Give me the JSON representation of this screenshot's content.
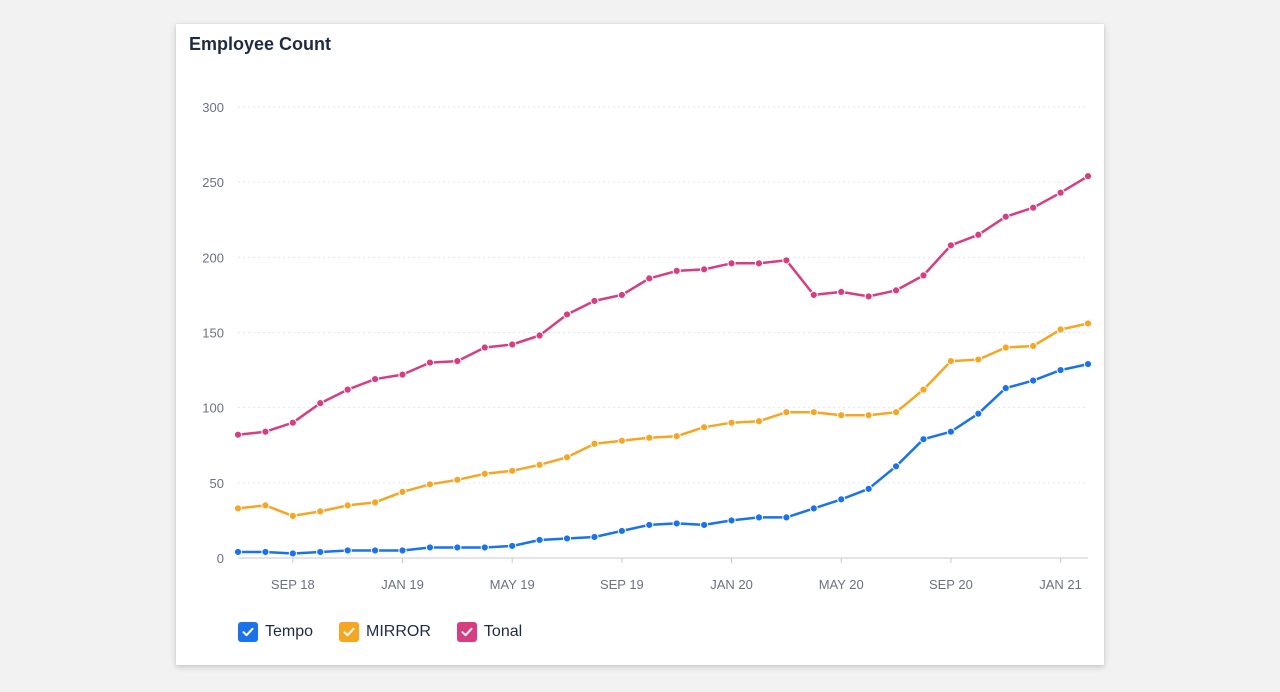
{
  "card": {
    "title": "Employee Count"
  },
  "chart_data": {
    "type": "line",
    "title": "Employee Count",
    "xlabel": "",
    "ylabel": "",
    "ylim": [
      0,
      300
    ],
    "yticks": [
      0,
      50,
      100,
      150,
      200,
      250,
      300
    ],
    "grid": "horizontal dotted",
    "legend_position": "bottom-left",
    "x": [
      "2018-07",
      "2018-08",
      "2018-09",
      "2018-10",
      "2018-11",
      "2018-12",
      "2019-01",
      "2019-02",
      "2019-03",
      "2019-04",
      "2019-05",
      "2019-06",
      "2019-07",
      "2019-08",
      "2019-09",
      "2019-10",
      "2019-11",
      "2019-12",
      "2020-01",
      "2020-02",
      "2020-03",
      "2020-04",
      "2020-05",
      "2020-06",
      "2020-07",
      "2020-08",
      "2020-09",
      "2020-10",
      "2020-11",
      "2020-12",
      "2021-01",
      "2021-02"
    ],
    "x_ticks": [
      {
        "x": "2018-09",
        "label": "SEP 18"
      },
      {
        "x": "2019-01",
        "label": "JAN 19"
      },
      {
        "x": "2019-05",
        "label": "MAY 19"
      },
      {
        "x": "2019-09",
        "label": "SEP 19"
      },
      {
        "x": "2020-01",
        "label": "JAN 20"
      },
      {
        "x": "2020-05",
        "label": "MAY 20"
      },
      {
        "x": "2020-09",
        "label": "SEP 20"
      },
      {
        "x": "2021-01",
        "label": "JAN 21"
      }
    ],
    "series": [
      {
        "name": "Tempo",
        "color": "#1a73e8",
        "values": [
          4,
          4,
          3,
          4,
          5,
          5,
          5,
          7,
          7,
          7,
          8,
          12,
          13,
          14,
          18,
          22,
          23,
          22,
          25,
          27,
          27,
          33,
          39,
          46,
          61,
          79,
          84,
          96,
          113,
          118,
          125,
          129
        ]
      },
      {
        "name": "MIRROR",
        "color": "#f5a623",
        "values": [
          33,
          35,
          28,
          31,
          35,
          37,
          44,
          49,
          52,
          56,
          58,
          62,
          67,
          76,
          78,
          80,
          81,
          87,
          90,
          91,
          97,
          97,
          95,
          95,
          97,
          112,
          131,
          132,
          140,
          141,
          152,
          156
        ]
      },
      {
        "name": "Tonal",
        "color": "#d63e82",
        "values": [
          82,
          84,
          90,
          103,
          112,
          119,
          122,
          130,
          131,
          140,
          142,
          148,
          162,
          171,
          175,
          186,
          191,
          192,
          196,
          196,
          198,
          175,
          177,
          174,
          178,
          188,
          208,
          215,
          227,
          233,
          243,
          254
        ]
      }
    ]
  },
  "legend": [
    {
      "label": "Tempo",
      "color": "#1a73e8",
      "icon": "check-icon"
    },
    {
      "label": "MIRROR",
      "color": "#f5a623",
      "icon": "check-icon"
    },
    {
      "label": "Tonal",
      "color": "#d63e82",
      "icon": "check-icon"
    }
  ]
}
